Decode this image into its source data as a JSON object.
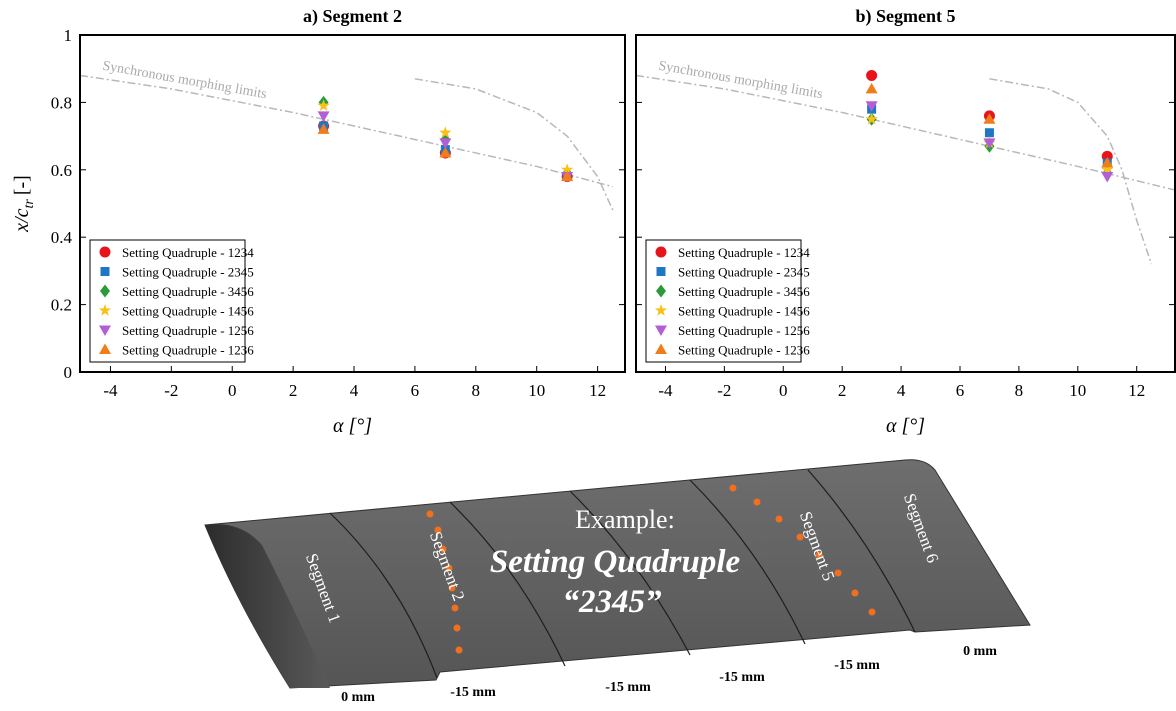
{
  "chart_data": [
    {
      "type": "scatter",
      "title": "a) Segment 2",
      "xlabel": "α [°]",
      "ylabel": "x/c",
      "ylabel_subscript": "tr",
      "ylabel_unit": "[-]",
      "xlim": [
        -5,
        12.9
      ],
      "ylim": [
        0,
        1
      ],
      "xticks": [
        -4,
        -2,
        0,
        2,
        4,
        6,
        8,
        10,
        12
      ],
      "yticks": [
        0,
        0.2,
        0.4,
        0.6,
        0.8,
        1
      ],
      "show_ytick_labels": true,
      "legend": "lower left",
      "annotation": "Synchronous morphing limits",
      "limit_lines": [
        {
          "x": [
            -5,
            -2,
            2,
            6,
            10,
            12.5
          ],
          "y": [
            0.88,
            0.84,
            0.77,
            0.69,
            0.61,
            0.55
          ]
        },
        {
          "x": [
            6,
            8,
            10,
            11,
            12,
            12.5
          ],
          "y": [
            0.87,
            0.84,
            0.77,
            0.7,
            0.58,
            0.48
          ]
        }
      ],
      "x": [
        3,
        7,
        11
      ],
      "series": [
        {
          "name": "Setting Quadruple - 1234",
          "color": "#e8141b",
          "marker": "circle",
          "values": [
            0.73,
            0.65,
            0.58
          ]
        },
        {
          "name": "Setting Quadruple - 2345",
          "color": "#1f77c4",
          "marker": "square",
          "values": [
            0.73,
            0.66,
            0.58
          ]
        },
        {
          "name": "Setting Quadruple - 3456",
          "color": "#2a9a3a",
          "marker": "diamond",
          "values": [
            0.8,
            0.69,
            0.59
          ]
        },
        {
          "name": "Setting Quadruple - 1456",
          "color": "#f7c11a",
          "marker": "star",
          "values": [
            0.79,
            0.71,
            0.6
          ]
        },
        {
          "name": "Setting Quadruple - 1256",
          "color": "#b25fd6",
          "marker": "triangle-down",
          "values": [
            0.76,
            0.68,
            0.58
          ]
        },
        {
          "name": "Setting Quadruple - 1236",
          "color": "#f07c1a",
          "marker": "triangle-up",
          "values": [
            0.72,
            0.65,
            0.58
          ]
        }
      ]
    },
    {
      "type": "scatter",
      "title": "b) Segment 5",
      "xlabel": "α [°]",
      "xlim": [
        -5,
        13.3
      ],
      "ylim": [
        0,
        1
      ],
      "xticks": [
        -4,
        -2,
        0,
        2,
        4,
        6,
        8,
        10,
        12
      ],
      "yticks": [
        0,
        0.2,
        0.4,
        0.6,
        0.8,
        1
      ],
      "show_ytick_labels": false,
      "legend": "lower left",
      "annotation": "Synchronous morphing limits",
      "limit_lines": [
        {
          "x": [
            -5,
            -2,
            2,
            6,
            10,
            13.3
          ],
          "y": [
            0.88,
            0.84,
            0.77,
            0.69,
            0.61,
            0.54
          ]
        },
        {
          "x": [
            7,
            9,
            10,
            11,
            11.5,
            12,
            12.5
          ],
          "y": [
            0.87,
            0.84,
            0.8,
            0.7,
            0.6,
            0.45,
            0.32
          ]
        }
      ],
      "x": [
        3,
        7,
        11
      ],
      "series": [
        {
          "name": "Setting Quadruple - 1234",
          "color": "#e8141b",
          "marker": "circle",
          "values": [
            0.88,
            0.76,
            0.64
          ]
        },
        {
          "name": "Setting Quadruple - 2345",
          "color": "#1f77c4",
          "marker": "square",
          "values": [
            0.78,
            0.71,
            0.62
          ]
        },
        {
          "name": "Setting Quadruple - 3456",
          "color": "#2a9a3a",
          "marker": "diamond",
          "values": [
            0.75,
            0.67,
            0.59
          ]
        },
        {
          "name": "Setting Quadruple - 1456",
          "color": "#f7c11a",
          "marker": "star",
          "values": [
            0.75,
            0.68,
            0.6
          ]
        },
        {
          "name": "Setting Quadruple - 1256",
          "color": "#b25fd6",
          "marker": "triangle-down",
          "values": [
            0.79,
            0.68,
            0.58
          ]
        },
        {
          "name": "Setting Quadruple - 1236",
          "color": "#f07c1a",
          "marker": "triangle-up",
          "values": [
            0.84,
            0.75,
            0.62
          ]
        }
      ]
    }
  ],
  "illustration": {
    "example": "Example:",
    "setting": "Setting Quadruple",
    "quadruple": "“2345”",
    "segments": [
      "Segment 1",
      "Segment 2",
      "Segment 5",
      "Segment 6"
    ],
    "offsets": [
      "0 mm",
      "-15 mm",
      "-15 mm",
      "-15 mm",
      "-15 mm",
      "0 mm"
    ]
  }
}
